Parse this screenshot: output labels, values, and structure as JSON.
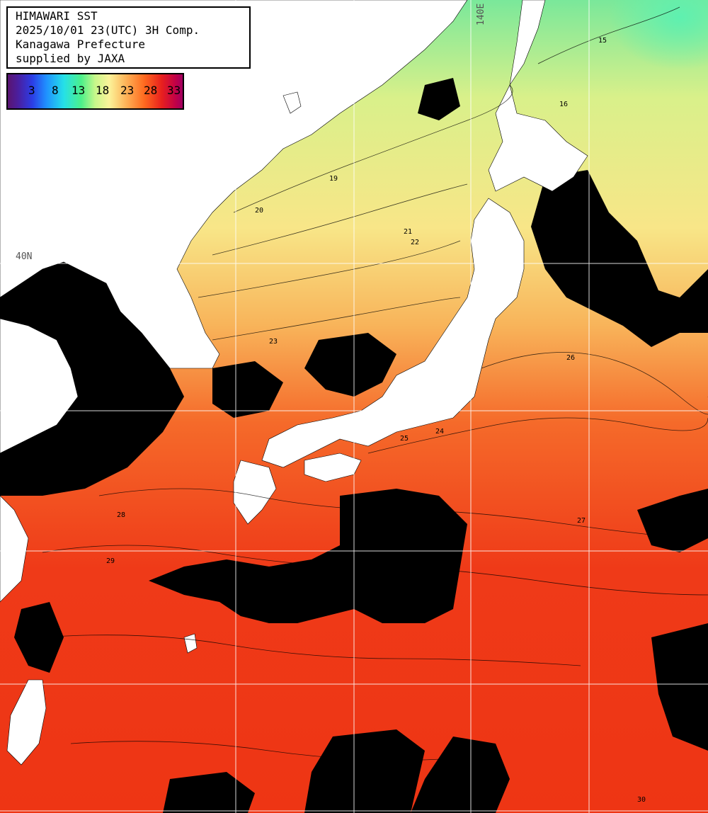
{
  "title": {
    "line1": "HIMAWARI SST",
    "line2": "2025/10/01 23(UTC) 3H Comp.",
    "line3": "Kanagawa Prefecture",
    "line4": "supplied by JAXA"
  },
  "legend": {
    "ticks": [
      "3",
      "8",
      "13",
      "18",
      "23",
      "28",
      "33"
    ],
    "unit_range": [
      0,
      35
    ]
  },
  "graticule": {
    "lon_label": "140E",
    "lat_label": "40N"
  },
  "contour_labels": [
    "15",
    "16",
    "19",
    "20",
    "21",
    "22",
    "23",
    "24",
    "25",
    "26",
    "27",
    "28",
    "29",
    "30"
  ],
  "colors": {
    "land": "#ffffff",
    "cloud": "#000000",
    "sea_cold": "#5ef0a0",
    "sea_mild": "#f7f08a",
    "sea_warm": "#fa9a40",
    "sea_hot": "#f03a18",
    "grid": "#ffffff"
  }
}
